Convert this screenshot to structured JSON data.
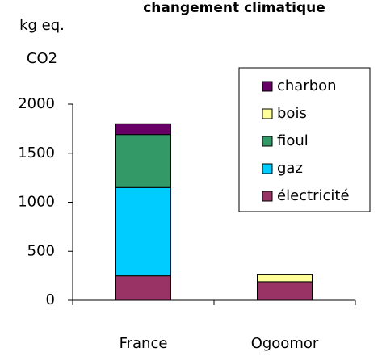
{
  "chart_data": {
    "type": "stacked_bar",
    "title": "changement climatique",
    "ylabel_lines": [
      "kg eq.",
      "CO2"
    ],
    "categories": [
      "France",
      "Ogoomor"
    ],
    "series": [
      {
        "name": "électricité",
        "color": "#993366",
        "values": [
          250,
          190
        ]
      },
      {
        "name": "gaz",
        "color": "#00ccff",
        "values": [
          900,
          0
        ]
      },
      {
        "name": "fioul",
        "color": "#339966",
        "values": [
          540,
          0
        ]
      },
      {
        "name": "bois",
        "color": "#ffff99",
        "values": [
          0,
          70
        ]
      },
      {
        "name": "charbon",
        "color": "#660066",
        "values": [
          110,
          0
        ]
      }
    ],
    "ylim": [
      0,
      2000
    ],
    "yticks": [
      0,
      500,
      1000,
      1500,
      2000
    ],
    "grid": false
  }
}
